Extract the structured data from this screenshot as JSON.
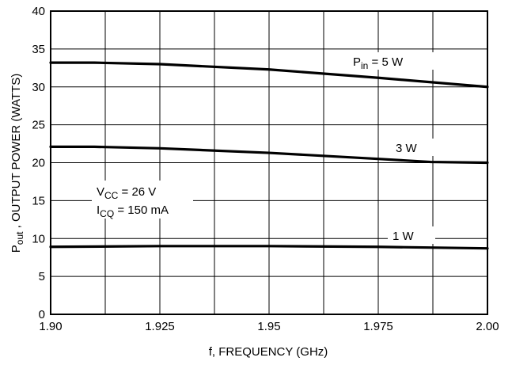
{
  "chart_data": {
    "type": "line",
    "xlabel": "f, FREQUENCY (GHz)",
    "ylabel_main": "P",
    "ylabel_sub": "out",
    "ylabel_rest": " , OUTPUT POWER (WATTS)",
    "xlim": [
      1.9,
      2.0
    ],
    "ylim": [
      0,
      40
    ],
    "grid": true,
    "x_ticks": [
      "1.90",
      "1.925",
      "1.95",
      "1.975",
      "2.00"
    ],
    "x_tick_values": [
      1.9,
      1.925,
      1.95,
      1.975,
      2.0
    ],
    "y_ticks": [
      "0",
      "5",
      "10",
      "15",
      "20",
      "25",
      "30",
      "35",
      "40"
    ],
    "y_tick_values": [
      0,
      5,
      10,
      15,
      20,
      25,
      30,
      35,
      40
    ],
    "x_grid_values": [
      1.9,
      1.9125,
      1.925,
      1.9375,
      1.95,
      1.9625,
      1.975,
      1.9875,
      2.0
    ],
    "series": [
      {
        "name": "P_in = 5 W",
        "label_main": "P",
        "label_sub": "in",
        "label_rest": " = 5 W",
        "x": [
          1.9,
          1.91,
          1.925,
          1.95,
          1.975,
          2.0
        ],
        "y": [
          33.2,
          33.2,
          33.0,
          32.3,
          31.2,
          30.0
        ]
      },
      {
        "name": "3 W",
        "label_main": "3 W",
        "label_sub": "",
        "label_rest": "",
        "x": [
          1.9,
          1.91,
          1.925,
          1.95,
          1.975,
          1.987,
          2.0
        ],
        "y": [
          22.1,
          22.1,
          21.9,
          21.3,
          20.5,
          20.1,
          20.0
        ]
      },
      {
        "name": "1 W",
        "label_main": "1 W",
        "label_sub": "",
        "label_rest": "",
        "x": [
          1.9,
          1.925,
          1.95,
          1.975,
          2.0
        ],
        "y": [
          8.9,
          9.0,
          9.0,
          8.9,
          8.7
        ]
      }
    ],
    "annotation": {
      "vcc_main": "V",
      "vcc_sub": "CC",
      "vcc_rest": " = 26 V",
      "icq_main": "I",
      "icq_sub": "CQ",
      "icq_rest": " = 150 mA"
    }
  }
}
